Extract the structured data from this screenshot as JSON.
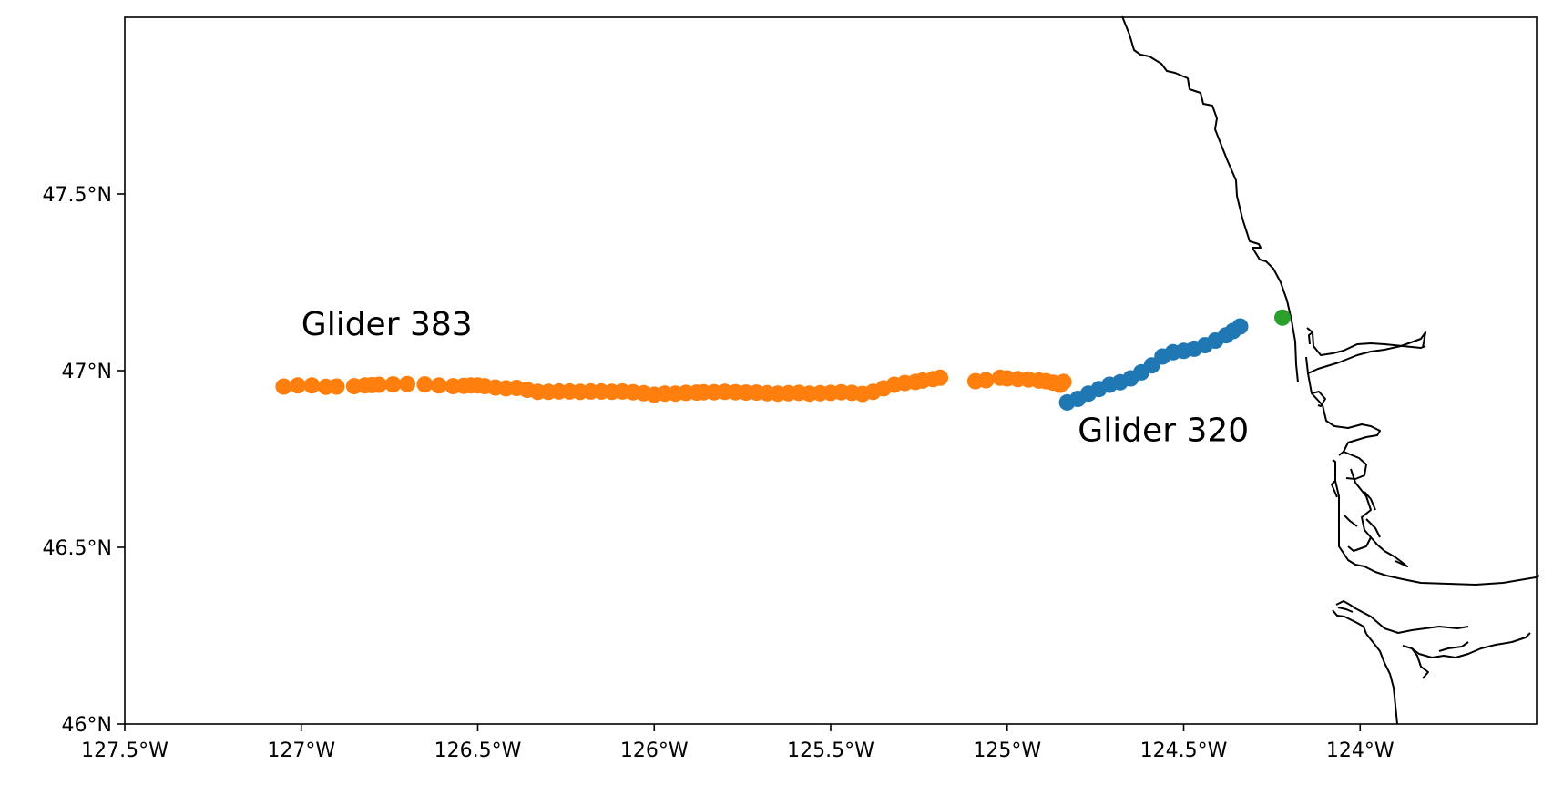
{
  "chart_data": {
    "type": "scatter",
    "title": "",
    "xlabel": "",
    "ylabel": "",
    "xlim": [
      -127.5,
      -123.5
    ],
    "ylim": [
      46.0,
      48.0
    ],
    "x_ticks": [
      -127.5,
      -127.0,
      -126.5,
      -126.0,
      -125.5,
      -125.0,
      -124.5,
      -124.0
    ],
    "x_tick_labels": [
      "127.5°W",
      "127°W",
      "126.5°W",
      "126°W",
      "125.5°W",
      "125°W",
      "124.5°W",
      "124°W"
    ],
    "y_ticks": [
      46.0,
      46.5,
      47.0,
      47.5
    ],
    "y_tick_labels": [
      "46°N",
      "46.5°N",
      "47°N",
      "47.5°N"
    ],
    "grid": false,
    "legend": "none",
    "annotations": [
      {
        "text": "Glider 383",
        "lon": -127.0,
        "lat": 47.1
      },
      {
        "text": "Glider 320",
        "lon": -124.8,
        "lat": 46.8
      }
    ],
    "series": [
      {
        "color": "#ff7f0e",
        "points": [
          [
            -127.05,
            46.955
          ],
          [
            -127.01,
            46.958
          ],
          [
            -126.97,
            46.958
          ],
          [
            -126.93,
            46.954
          ],
          [
            -126.9,
            46.955
          ],
          [
            -126.85,
            46.956
          ],
          [
            -126.82,
            46.958
          ],
          [
            -126.8,
            46.959
          ],
          [
            -126.78,
            46.96
          ],
          [
            -126.74,
            46.961
          ],
          [
            -126.7,
            46.962
          ],
          [
            -126.65,
            46.961
          ],
          [
            -126.61,
            46.958
          ],
          [
            -126.57,
            46.956
          ],
          [
            -126.54,
            46.957
          ],
          [
            -126.52,
            46.958
          ],
          [
            -126.5,
            46.958
          ],
          [
            -126.48,
            46.956
          ],
          [
            -126.45,
            46.952
          ],
          [
            -126.42,
            46.95
          ],
          [
            -126.39,
            46.951
          ],
          [
            -126.36,
            46.946
          ],
          [
            -126.33,
            46.94
          ],
          [
            -126.3,
            46.94
          ],
          [
            -126.27,
            46.941
          ],
          [
            -126.24,
            46.941
          ],
          [
            -126.21,
            46.94
          ],
          [
            -126.18,
            46.941
          ],
          [
            -126.15,
            46.941
          ],
          [
            -126.12,
            46.94
          ],
          [
            -126.09,
            46.941
          ],
          [
            -126.06,
            46.939
          ],
          [
            -126.03,
            46.936
          ],
          [
            -126.0,
            46.932
          ],
          [
            -125.97,
            46.935
          ],
          [
            -125.94,
            46.935
          ],
          [
            -125.91,
            46.937
          ],
          [
            -125.88,
            46.938
          ],
          [
            -125.86,
            46.939
          ],
          [
            -125.83,
            46.939
          ],
          [
            -125.8,
            46.94
          ],
          [
            -125.77,
            46.939
          ],
          [
            -125.74,
            46.938
          ],
          [
            -125.71,
            46.938
          ],
          [
            -125.68,
            46.936
          ],
          [
            -125.65,
            46.935
          ],
          [
            -125.62,
            46.936
          ],
          [
            -125.59,
            46.937
          ],
          [
            -125.56,
            46.935
          ],
          [
            -125.53,
            46.936
          ],
          [
            -125.5,
            46.937
          ],
          [
            -125.47,
            46.939
          ],
          [
            -125.44,
            46.937
          ],
          [
            -125.41,
            46.934
          ],
          [
            -125.38,
            46.94
          ],
          [
            -125.35,
            46.95
          ],
          [
            -125.32,
            46.96
          ],
          [
            -125.29,
            46.965
          ],
          [
            -125.26,
            46.968
          ],
          [
            -125.24,
            46.972
          ],
          [
            -125.21,
            46.976
          ],
          [
            -125.19,
            46.98
          ],
          [
            -125.09,
            46.97
          ],
          [
            -125.06,
            46.973
          ],
          [
            -125.02,
            46.98
          ],
          [
            -125.0,
            46.978
          ],
          [
            -124.97,
            46.976
          ],
          [
            -124.94,
            46.975
          ],
          [
            -124.91,
            46.972
          ],
          [
            -124.89,
            46.97
          ],
          [
            -124.87,
            46.966
          ],
          [
            -124.85,
            46.96
          ],
          [
            -124.84,
            46.968
          ]
        ]
      },
      {
        "color": "#1f77b4",
        "points": [
          [
            -124.83,
            46.91
          ],
          [
            -124.8,
            46.92
          ],
          [
            -124.77,
            46.935
          ],
          [
            -124.74,
            46.948
          ],
          [
            -124.71,
            46.96
          ],
          [
            -124.68,
            46.967
          ],
          [
            -124.65,
            46.978
          ],
          [
            -124.62,
            46.995
          ],
          [
            -124.59,
            47.015
          ],
          [
            -124.56,
            47.04
          ],
          [
            -124.53,
            47.052
          ],
          [
            -124.5,
            47.056
          ],
          [
            -124.47,
            47.062
          ],
          [
            -124.44,
            47.072
          ],
          [
            -124.41,
            47.085
          ],
          [
            -124.38,
            47.1
          ],
          [
            -124.36,
            47.112
          ],
          [
            -124.34,
            47.125
          ]
        ]
      },
      {
        "color": "#2ca02c",
        "points": [
          [
            -124.22,
            47.15
          ]
        ]
      }
    ]
  }
}
